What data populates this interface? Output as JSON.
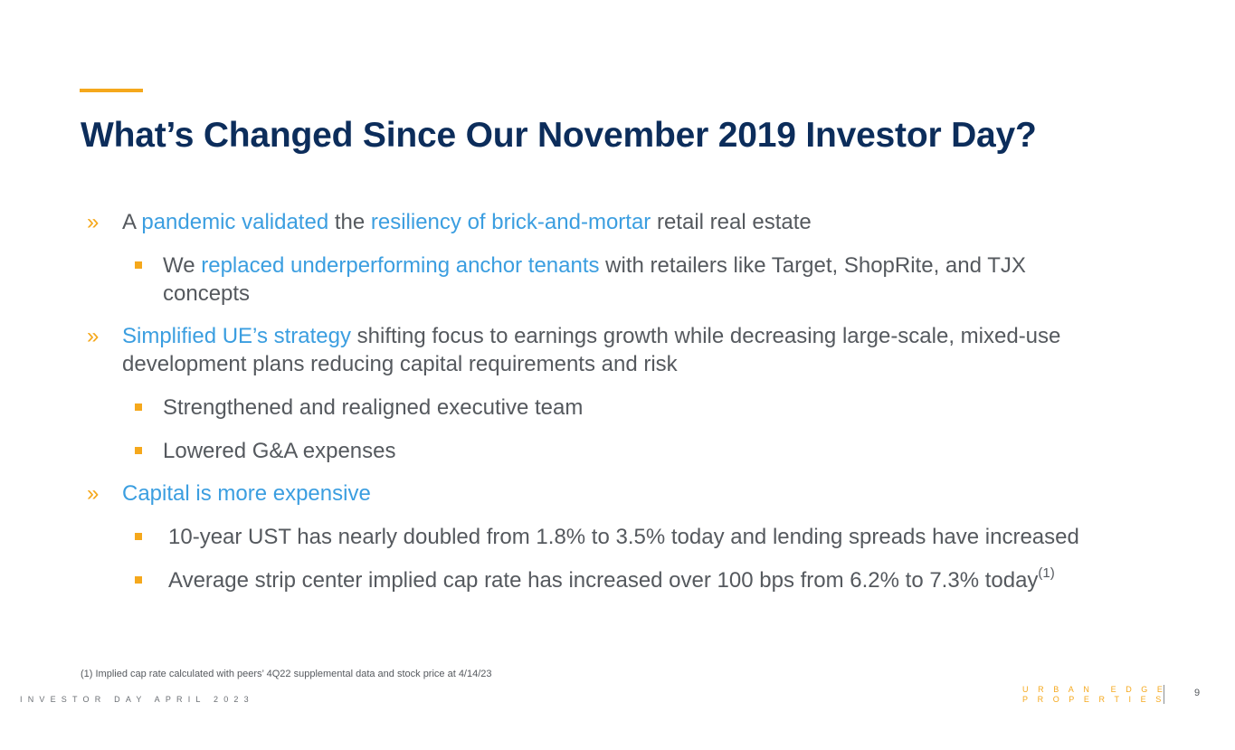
{
  "title": "What’s Changed Since Our November 2019 Investor Day?",
  "bullets": {
    "b1": {
      "marker": "»",
      "t1": "A ",
      "h1": "pandemic validated",
      "t2": " the ",
      "h2": "resiliency of brick-and-mortar",
      "t3": " retail real estate"
    },
    "b1s1": {
      "t1": "We ",
      "h1": "replaced underperforming anchor tenants",
      "t2": " with retailers like Target, ShopRite, and TJX",
      "t3": "concepts"
    },
    "b2": {
      "marker": "»",
      "h1": "Simplified UE’s strategy",
      "t1": " shifting focus to earnings growth while decreasing large-scale, mixed-use",
      "t2": "development plans reducing capital requirements and risk"
    },
    "b2s1": {
      "text": "Strengthened and realigned executive team"
    },
    "b2s2": {
      "text": "Lowered G&A expenses"
    },
    "b3": {
      "marker": "»",
      "h1": "Capital is more expensive"
    },
    "b3s1": {
      "text": "10-year UST has nearly doubled from 1.8% to 3.5% today and lending spreads have increased"
    },
    "b3s2": {
      "text": "Average strip center implied cap rate has increased over 100 bps from 6.2% to 7.3% today",
      "sup": "(1)"
    }
  },
  "footnote": "(1) Implied cap rate calculated with peers’ 4Q22 supplemental data and stock price at 4/14/23",
  "footer": {
    "event": "INVESTOR DAY APRIL 2023",
    "brand_line1": "URBAN EDGE",
    "brand_line2": "PROPERTIES",
    "page_number": "9"
  },
  "colors": {
    "accent": "#f5a81c",
    "title": "#0c2d5b",
    "highlight": "#3b9ee0",
    "body": "#55595e"
  }
}
